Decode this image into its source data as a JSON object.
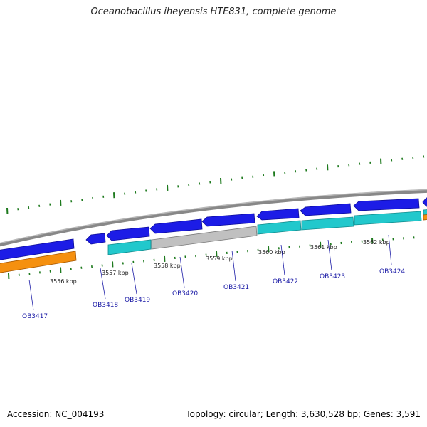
{
  "title": "Oceanobacillus iheyensis HTE831, complete genome",
  "accession": "Accession: NC_004193",
  "summary": "Topology: circular; Length: 3,630,528 bp; Genes: 3,591",
  "colors": {
    "forward_gene": "#1c1ce6",
    "reverse_gene": "#22c8cc",
    "grey_gene": "#c0c0c0",
    "orange_gene": "#f5900f",
    "backbone": "#8a8a8a",
    "tick": "#1e7a1e",
    "label": "#1a1aa6"
  },
  "kbp_markers": [
    "3556 kbp",
    "3557 kbp",
    "3558 kbp",
    "3559 kbp",
    "3560 kbp",
    "3561 kbp",
    "3562 kbp"
  ],
  "gene_labels": [
    "OB3417",
    "OB3418",
    "OB3419",
    "OB3420",
    "OB3421",
    "OB3422",
    "OB3423",
    "OB3424"
  ]
}
